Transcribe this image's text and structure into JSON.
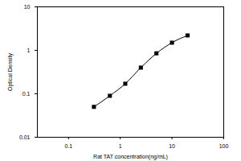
{
  "chart_data": {
    "type": "line",
    "x_label": "Rat TAT concentration(ng/mL)",
    "y_label": "Optical Density",
    "x": [
      0.31,
      0.63,
      1.25,
      2.5,
      5,
      10,
      20
    ],
    "values": [
      0.05,
      0.09,
      0.17,
      0.4,
      0.85,
      1.5,
      2.2
    ],
    "xlim": [
      0.025,
      100
    ],
    "ylim": [
      0.01,
      10
    ],
    "xticks": [
      0.1,
      1,
      10,
      100
    ],
    "yticks": [
      0.01,
      0.1,
      1,
      10
    ],
    "log": true,
    "marker": "square",
    "color": "#000000"
  }
}
